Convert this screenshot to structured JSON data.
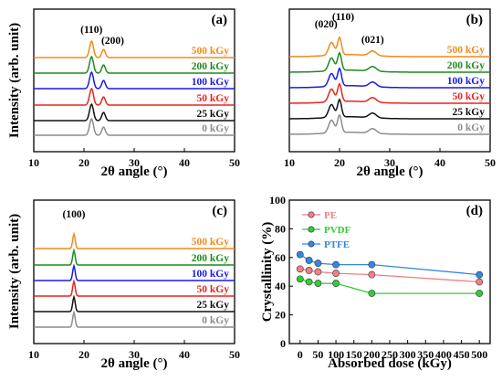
{
  "chart_data": [
    {
      "panel": "(a)",
      "type": "line",
      "xlabel": "2θ angle (°)",
      "ylabel": "Intensity (arb. unit)",
      "xlim": [
        10,
        50
      ],
      "xticks": [
        "10",
        "20",
        "30",
        "40",
        "50"
      ],
      "annotations": [
        "(110)",
        "(200)"
      ],
      "peaks": [
        {
          "two_theta": 21.5,
          "rel_height": 1.0
        },
        {
          "two_theta": 23.9,
          "rel_height": 0.3
        }
      ],
      "series": [
        {
          "name": "0 kGy",
          "color": "#8c8c8c"
        },
        {
          "name": "25 kGy",
          "color": "#111111"
        },
        {
          "name": "50 kGy",
          "color": "#e8231f"
        },
        {
          "name": "100 kGy",
          "color": "#1a1ae6"
        },
        {
          "name": "200 kGy",
          "color": "#1f8a1f"
        },
        {
          "name": "500 kGy",
          "color": "#f28a1a"
        }
      ],
      "grid": false
    },
    {
      "panel": "(b)",
      "type": "line",
      "xlabel": "2θ angle (°)",
      "ylabel": "",
      "xlim": [
        10,
        50
      ],
      "xticks": [
        "10",
        "20",
        "30",
        "40",
        "50"
      ],
      "annotations": [
        "(020)",
        "(110)",
        "(021)"
      ],
      "peaks": [
        {
          "two_theta": 18.4,
          "rel_height": 0.75
        },
        {
          "two_theta": 20.0,
          "rel_height": 1.0
        },
        {
          "two_theta": 26.6,
          "rel_height": 0.4
        }
      ],
      "series": [
        {
          "name": "0 kGy",
          "color": "#8c8c8c"
        },
        {
          "name": "25 kGy",
          "color": "#111111"
        },
        {
          "name": "50 kGy",
          "color": "#e8231f"
        },
        {
          "name": "100 kGy",
          "color": "#1a1ae6"
        },
        {
          "name": "200 kGy",
          "color": "#1f8a1f"
        },
        {
          "name": "500 kGy",
          "color": "#f28a1a"
        }
      ],
      "grid": false
    },
    {
      "panel": "(c)",
      "type": "line",
      "xlabel": "2θ angle (°)",
      "ylabel": "Intensity (arb. unit)",
      "xlim": [
        10,
        50
      ],
      "xticks": [
        "10",
        "20",
        "30",
        "40",
        "50"
      ],
      "annotations": [
        "(100)"
      ],
      "peaks": [
        {
          "two_theta": 18.0,
          "rel_height": 1.0
        }
      ],
      "series": [
        {
          "name": "0 kGy",
          "color": "#8c8c8c"
        },
        {
          "name": "25 kGy",
          "color": "#111111"
        },
        {
          "name": "50 kGy",
          "color": "#e8231f"
        },
        {
          "name": "100 kGy",
          "color": "#1a1ae6"
        },
        {
          "name": "200 kGy",
          "color": "#1f8a1f"
        },
        {
          "name": "500 kGy",
          "color": "#f28a1a"
        }
      ],
      "grid": false
    },
    {
      "panel": "(d)",
      "type": "line",
      "xlabel": "Absorbed dose (kGy)",
      "ylabel": "Crystallinity (%)",
      "xlim": [
        -30,
        530
      ],
      "ylim": [
        0,
        100
      ],
      "xticks": [
        0,
        50,
        100,
        150,
        200,
        250,
        300,
        350,
        400,
        450,
        500
      ],
      "yticks": [
        0,
        20,
        40,
        60,
        80,
        100
      ],
      "x": [
        0,
        25,
        50,
        100,
        200,
        500
      ],
      "series": [
        {
          "name": "PE",
          "color": "#f08080",
          "values": [
            52,
            51,
            50,
            49,
            48,
            43
          ]
        },
        {
          "name": "PVDF",
          "color": "#33cc33",
          "values": [
            45,
            43,
            42,
            42,
            35,
            35
          ]
        },
        {
          "name": "PTFE",
          "color": "#3388dd",
          "values": [
            62,
            58,
            56,
            55,
            55,
            48
          ]
        }
      ],
      "legend": "top-left",
      "grid": false
    }
  ]
}
